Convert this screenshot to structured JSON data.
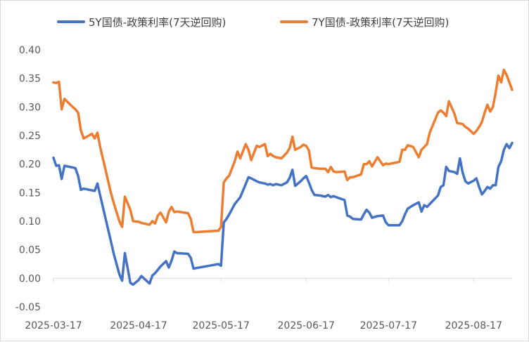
{
  "chart_data": {
    "type": "line",
    "title": "",
    "xlabel": "",
    "ylabel": "",
    "ylim": [
      -0.05,
      0.4
    ],
    "y_ticks": [
      -0.05,
      0.0,
      0.05,
      0.1,
      0.15,
      0.2,
      0.25,
      0.3,
      0.35,
      0.4
    ],
    "y_tick_labels": [
      "-0.05",
      "0.00",
      "0.05",
      "0.10",
      "0.15",
      "0.20",
      "0.25",
      "0.30",
      "0.35",
      "0.40"
    ],
    "x_range": [
      "2025-03-17",
      "2025-08-31"
    ],
    "x_ticks": [
      "2025-03-17",
      "2025-04-17",
      "2025-05-17",
      "2025-06-17",
      "2025-07-17",
      "2025-08-17"
    ],
    "grid": false,
    "legend_position": "top",
    "series": [
      {
        "name": "5Y国债-政策利率(7天逆回购)",
        "color": "#4472C4",
        "points": [
          [
            "2025-03-17",
            0.211
          ],
          [
            "2025-03-18",
            0.197
          ],
          [
            "2025-03-19",
            0.198
          ],
          [
            "2025-03-20",
            0.174
          ],
          [
            "2025-03-21",
            0.197
          ],
          [
            "2025-03-24",
            0.194
          ],
          [
            "2025-03-25",
            0.193
          ],
          [
            "2025-03-26",
            0.179
          ],
          [
            "2025-03-27",
            0.155
          ],
          [
            "2025-03-28",
            0.157
          ],
          [
            "2025-03-31",
            0.154
          ],
          [
            "2025-04-01",
            0.153
          ],
          [
            "2025-04-02",
            0.166
          ],
          [
            "2025-04-03",
            0.145
          ],
          [
            "2025-04-07",
            0.063
          ],
          [
            "2025-04-08",
            0.042
          ],
          [
            "2025-04-10",
            0.007
          ],
          [
            "2025-04-11",
            -0.004
          ],
          [
            "2025-04-12",
            0.044
          ],
          [
            "2025-04-14",
            -0.008
          ],
          [
            "2025-04-15",
            -0.011
          ],
          [
            "2025-04-17",
            -0.003
          ],
          [
            "2025-04-18",
            0.004
          ],
          [
            "2025-04-21",
            -0.009
          ],
          [
            "2025-04-22",
            0.005
          ],
          [
            "2025-04-23",
            0.009
          ],
          [
            "2025-04-24",
            0.015
          ],
          [
            "2025-04-25",
            0.021
          ],
          [
            "2025-04-27",
            0.03
          ],
          [
            "2025-04-28",
            0.019
          ],
          [
            "2025-04-29",
            0.031
          ],
          [
            "2025-04-30",
            0.047
          ],
          [
            "2025-05-01",
            0.044
          ],
          [
            "2025-05-05",
            0.043
          ],
          [
            "2025-05-06",
            0.036
          ],
          [
            "2025-05-07",
            0.017
          ],
          [
            "2025-05-08",
            0.018
          ],
          [
            "2025-05-15",
            0.024
          ],
          [
            "2025-05-16",
            0.025
          ],
          [
            "2025-05-17",
            0.022
          ],
          [
            "2025-05-18",
            0.098
          ],
          [
            "2025-05-19",
            0.104
          ],
          [
            "2025-05-20",
            0.112
          ],
          [
            "2025-05-22",
            0.13
          ],
          [
            "2025-05-23",
            0.136
          ],
          [
            "2025-05-24",
            0.142
          ],
          [
            "2025-05-26",
            0.165
          ],
          [
            "2025-05-27",
            0.177
          ],
          [
            "2025-05-28",
            0.175
          ],
          [
            "2025-05-30",
            0.17
          ],
          [
            "2025-05-31",
            0.168
          ],
          [
            "2025-06-02",
            0.166
          ],
          [
            "2025-06-03",
            0.164
          ],
          [
            "2025-06-04",
            0.165
          ],
          [
            "2025-06-05",
            0.163
          ],
          [
            "2025-06-06",
            0.165
          ],
          [
            "2025-06-08",
            0.163
          ],
          [
            "2025-06-10",
            0.168
          ],
          [
            "2025-06-11",
            0.176
          ],
          [
            "2025-06-12",
            0.19
          ],
          [
            "2025-06-13",
            0.162
          ],
          [
            "2025-06-15",
            0.17
          ],
          [
            "2025-06-16",
            0.175
          ],
          [
            "2025-06-17",
            0.179
          ],
          [
            "2025-06-18",
            0.168
          ],
          [
            "2025-06-19",
            0.155
          ],
          [
            "2025-06-20",
            0.146
          ],
          [
            "2025-06-22",
            0.145
          ],
          [
            "2025-06-24",
            0.143
          ],
          [
            "2025-06-25",
            0.146
          ],
          [
            "2025-06-26",
            0.142
          ],
          [
            "2025-06-27",
            0.144
          ],
          [
            "2025-06-28",
            0.142
          ],
          [
            "2025-07-01",
            0.137
          ],
          [
            "2025-07-02",
            0.11
          ],
          [
            "2025-07-03",
            0.108
          ],
          [
            "2025-07-04",
            0.104
          ],
          [
            "2025-07-07",
            0.103
          ],
          [
            "2025-07-08",
            0.112
          ],
          [
            "2025-07-09",
            0.12
          ],
          [
            "2025-07-10",
            0.115
          ],
          [
            "2025-07-11",
            0.106
          ],
          [
            "2025-07-13",
            0.109
          ],
          [
            "2025-07-15",
            0.11
          ],
          [
            "2025-07-16",
            0.098
          ],
          [
            "2025-07-17",
            0.093
          ],
          [
            "2025-07-21",
            0.093
          ],
          [
            "2025-07-22",
            0.1
          ],
          [
            "2025-07-23",
            0.112
          ],
          [
            "2025-07-24",
            0.122
          ],
          [
            "2025-07-26",
            0.128
          ],
          [
            "2025-07-28",
            0.133
          ],
          [
            "2025-07-29",
            0.117
          ],
          [
            "2025-07-30",
            0.128
          ],
          [
            "2025-07-31",
            0.125
          ],
          [
            "2025-08-01",
            0.13
          ],
          [
            "2025-08-04",
            0.145
          ],
          [
            "2025-08-05",
            0.16
          ],
          [
            "2025-08-06",
            0.163
          ],
          [
            "2025-08-07",
            0.195
          ],
          [
            "2025-08-08",
            0.188
          ],
          [
            "2025-08-10",
            0.186
          ],
          [
            "2025-08-11",
            0.183
          ],
          [
            "2025-08-12",
            0.21
          ],
          [
            "2025-08-13",
            0.185
          ],
          [
            "2025-08-14",
            0.17
          ],
          [
            "2025-08-15",
            0.166
          ],
          [
            "2025-08-17",
            0.171
          ],
          [
            "2025-08-18",
            0.175
          ],
          [
            "2025-08-19",
            0.16
          ],
          [
            "2025-08-20",
            0.147
          ],
          [
            "2025-08-21",
            0.153
          ],
          [
            "2025-08-22",
            0.16
          ],
          [
            "2025-08-23",
            0.157
          ],
          [
            "2025-08-24",
            0.163
          ],
          [
            "2025-08-25",
            0.163
          ],
          [
            "2025-08-26",
            0.195
          ],
          [
            "2025-08-27",
            0.205
          ],
          [
            "2025-08-28",
            0.225
          ],
          [
            "2025-08-29",
            0.235
          ],
          [
            "2025-08-30",
            0.228
          ],
          [
            "2025-08-31",
            0.237
          ]
        ]
      },
      {
        "name": "7Y国债-政策利率(7天逆回购)",
        "color": "#ED7D31",
        "points": [
          [
            "2025-03-17",
            0.343
          ],
          [
            "2025-03-18",
            0.342
          ],
          [
            "2025-03-19",
            0.344
          ],
          [
            "2025-03-20",
            0.296
          ],
          [
            "2025-03-21",
            0.314
          ],
          [
            "2025-03-24",
            0.3
          ],
          [
            "2025-03-25",
            0.296
          ],
          [
            "2025-03-26",
            0.29
          ],
          [
            "2025-03-27",
            0.259
          ],
          [
            "2025-03-28",
            0.245
          ],
          [
            "2025-03-31",
            0.253
          ],
          [
            "2025-04-01",
            0.245
          ],
          [
            "2025-04-02",
            0.255
          ],
          [
            "2025-04-03",
            0.23
          ],
          [
            "2025-04-07",
            0.148
          ],
          [
            "2025-04-08",
            0.131
          ],
          [
            "2025-04-10",
            0.1
          ],
          [
            "2025-04-11",
            0.09
          ],
          [
            "2025-04-12",
            0.143
          ],
          [
            "2025-04-14",
            0.12
          ],
          [
            "2025-04-15",
            0.1
          ],
          [
            "2025-04-17",
            0.099
          ],
          [
            "2025-04-18",
            0.097
          ],
          [
            "2025-04-21",
            0.094
          ],
          [
            "2025-04-22",
            0.1
          ],
          [
            "2025-04-23",
            0.096
          ],
          [
            "2025-04-24",
            0.11
          ],
          [
            "2025-04-25",
            0.115
          ],
          [
            "2025-04-27",
            0.098
          ],
          [
            "2025-04-28",
            0.117
          ],
          [
            "2025-04-29",
            0.125
          ],
          [
            "2025-04-30",
            0.116
          ],
          [
            "2025-05-01",
            0.117
          ],
          [
            "2025-05-05",
            0.114
          ],
          [
            "2025-05-06",
            0.104
          ],
          [
            "2025-05-07",
            0.081
          ],
          [
            "2025-05-08",
            0.081
          ],
          [
            "2025-05-15",
            0.083
          ],
          [
            "2025-05-16",
            0.083
          ],
          [
            "2025-05-17",
            0.09
          ],
          [
            "2025-05-18",
            0.168
          ],
          [
            "2025-05-19",
            0.175
          ],
          [
            "2025-05-20",
            0.18
          ],
          [
            "2025-05-22",
            0.205
          ],
          [
            "2025-05-23",
            0.222
          ],
          [
            "2025-05-24",
            0.21
          ],
          [
            "2025-05-26",
            0.235
          ],
          [
            "2025-05-27",
            0.225
          ],
          [
            "2025-05-28",
            0.207
          ],
          [
            "2025-05-30",
            0.232
          ],
          [
            "2025-05-31",
            0.23
          ],
          [
            "2025-06-02",
            0.235
          ],
          [
            "2025-06-03",
            0.214
          ],
          [
            "2025-06-04",
            0.218
          ],
          [
            "2025-06-05",
            0.214
          ],
          [
            "2025-06-06",
            0.212
          ],
          [
            "2025-06-08",
            0.21
          ],
          [
            "2025-06-10",
            0.22
          ],
          [
            "2025-06-11",
            0.228
          ],
          [
            "2025-06-12",
            0.248
          ],
          [
            "2025-06-13",
            0.225
          ],
          [
            "2025-06-15",
            0.23
          ],
          [
            "2025-06-16",
            0.234
          ],
          [
            "2025-06-17",
            0.232
          ],
          [
            "2025-06-18",
            0.224
          ],
          [
            "2025-06-19",
            0.194
          ],
          [
            "2025-06-20",
            0.193
          ],
          [
            "2025-06-22",
            0.192
          ],
          [
            "2025-06-24",
            0.192
          ],
          [
            "2025-06-25",
            0.186
          ],
          [
            "2025-06-26",
            0.195
          ],
          [
            "2025-06-27",
            0.187
          ],
          [
            "2025-06-28",
            0.186
          ],
          [
            "2025-07-01",
            0.187
          ],
          [
            "2025-07-02",
            0.172
          ],
          [
            "2025-07-03",
            0.177
          ],
          [
            "2025-07-04",
            0.177
          ],
          [
            "2025-07-07",
            0.182
          ],
          [
            "2025-07-08",
            0.2
          ],
          [
            "2025-07-09",
            0.2
          ],
          [
            "2025-07-10",
            0.205
          ],
          [
            "2025-07-11",
            0.196
          ],
          [
            "2025-07-13",
            0.212
          ],
          [
            "2025-07-15",
            0.198
          ],
          [
            "2025-07-16",
            0.201
          ],
          [
            "2025-07-17",
            0.2
          ],
          [
            "2025-07-21",
            0.204
          ],
          [
            "2025-07-22",
            0.225
          ],
          [
            "2025-07-23",
            0.225
          ],
          [
            "2025-07-24",
            0.233
          ],
          [
            "2025-07-26",
            0.23
          ],
          [
            "2025-07-28",
            0.212
          ],
          [
            "2025-07-29",
            0.225
          ],
          [
            "2025-07-30",
            0.23
          ],
          [
            "2025-07-31",
            0.235
          ],
          [
            "2025-08-01",
            0.255
          ],
          [
            "2025-08-04",
            0.29
          ],
          [
            "2025-08-05",
            0.294
          ],
          [
            "2025-08-06",
            0.29
          ],
          [
            "2025-08-07",
            0.284
          ],
          [
            "2025-08-08",
            0.31
          ],
          [
            "2025-08-10",
            0.288
          ],
          [
            "2025-08-11",
            0.272
          ],
          [
            "2025-08-12",
            0.271
          ],
          [
            "2025-08-13",
            0.27
          ],
          [
            "2025-08-14",
            0.265
          ],
          [
            "2025-08-15",
            0.262
          ],
          [
            "2025-08-17",
            0.253
          ],
          [
            "2025-08-18",
            0.258
          ],
          [
            "2025-08-19",
            0.265
          ],
          [
            "2025-08-20",
            0.274
          ],
          [
            "2025-08-21",
            0.29
          ],
          [
            "2025-08-22",
            0.304
          ],
          [
            "2025-08-23",
            0.292
          ],
          [
            "2025-08-24",
            0.3
          ],
          [
            "2025-08-25",
            0.325
          ],
          [
            "2025-08-26",
            0.355
          ],
          [
            "2025-08-27",
            0.343
          ],
          [
            "2025-08-28",
            0.365
          ],
          [
            "2025-08-29",
            0.356
          ],
          [
            "2025-08-30",
            0.343
          ],
          [
            "2025-08-31",
            0.33
          ]
        ]
      }
    ]
  }
}
